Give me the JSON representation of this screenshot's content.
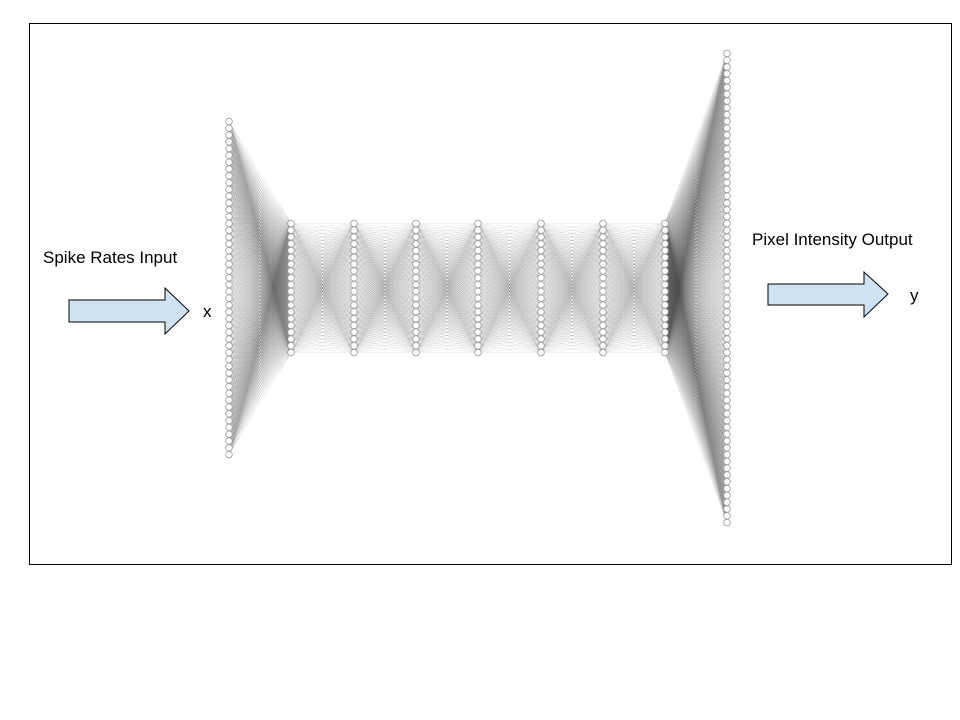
{
  "input": {
    "label": "Spike Rates Input",
    "variable": "x"
  },
  "output": {
    "label": "Pixel Intensity Output",
    "variable": "y"
  },
  "network": {
    "layer_neuron_counts": [
      50,
      20,
      20,
      20,
      20,
      20,
      20,
      20,
      70
    ],
    "node_fill": "#ffffff",
    "node_stroke": "#9a9a9a",
    "edge_color": "#3c3c3c"
  },
  "arrows": {
    "fill": "#cfe2f3",
    "stroke": "#000000"
  }
}
